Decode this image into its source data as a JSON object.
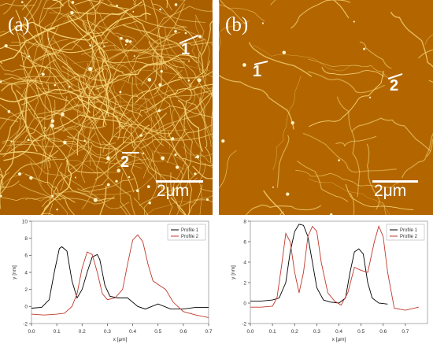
{
  "panels": {
    "a": {
      "label": "(a)",
      "markers": [
        "1",
        "2"
      ],
      "scale_bar": "2μm"
    },
    "b": {
      "label": "(b)",
      "markers": [
        "1",
        "2"
      ],
      "scale_bar": "2μm"
    }
  },
  "colors": {
    "afm_background": "#b86a00",
    "afm_fibers": "#f6d77a",
    "profile_1": "#000000",
    "profile_2": "#c0392b"
  },
  "chart_data": [
    {
      "type": "line",
      "xlabel": "x [μm]",
      "ylabel": "y [nm]",
      "xlim": [
        0,
        0.7
      ],
      "ylim": [
        -2,
        10
      ],
      "xticks": [
        0,
        0.1,
        0.2,
        0.3,
        0.4,
        0.5,
        0.6,
        0.7
      ],
      "xtick_labels": [
        "0.0",
        "0.1",
        "0.2",
        "0.3",
        "0.4",
        "0.5",
        "0.6",
        "0.7"
      ],
      "yticks": [
        -2,
        0,
        2,
        4,
        6,
        8,
        10
      ],
      "ytick_labels": [
        "-2",
        "0",
        "2",
        "4",
        "6",
        "8",
        "10"
      ],
      "legend_position": "top-right",
      "series": [
        {
          "name": "Profile 1",
          "color": "#000000",
          "x": [
            0,
            0.04,
            0.07,
            0.09,
            0.11,
            0.12,
            0.14,
            0.16,
            0.18,
            0.2,
            0.22,
            0.24,
            0.26,
            0.27,
            0.29,
            0.31,
            0.34,
            0.38,
            0.42,
            0.45,
            0.5,
            0.55,
            0.6,
            0.65,
            0.7
          ],
          "y": [
            -0.2,
            -0.1,
            0.8,
            4.0,
            6.8,
            7.0,
            6.5,
            3.0,
            1.0,
            2.0,
            4.0,
            5.8,
            6.1,
            5.5,
            2.5,
            1.2,
            1.0,
            1.0,
            0.0,
            -0.3,
            0.3,
            -0.3,
            -0.3,
            -0.1,
            -0.1
          ]
        },
        {
          "name": "Profile 2",
          "color": "#c0392b",
          "x": [
            0,
            0.05,
            0.1,
            0.13,
            0.16,
            0.18,
            0.2,
            0.22,
            0.24,
            0.26,
            0.28,
            0.3,
            0.33,
            0.36,
            0.38,
            0.4,
            0.42,
            0.44,
            0.46,
            0.48,
            0.5,
            0.53,
            0.56,
            0.6,
            0.65,
            0.7
          ],
          "y": [
            -0.9,
            -1.0,
            -0.9,
            -0.8,
            0.0,
            1.5,
            4.5,
            6.4,
            6.1,
            4.0,
            1.5,
            0.8,
            1.0,
            2.0,
            5.0,
            7.8,
            8.4,
            7.6,
            5.0,
            3.0,
            2.6,
            2.0,
            0.5,
            -0.6,
            -1.0,
            -1.3
          ]
        }
      ]
    },
    {
      "type": "line",
      "xlabel": "x [μm]",
      "ylabel": "y [nm]",
      "xlim": [
        0,
        0.8
      ],
      "ylim": [
        -2,
        8
      ],
      "xticks": [
        0,
        0.1,
        0.2,
        0.3,
        0.4,
        0.5,
        0.6,
        0.7
      ],
      "xtick_labels": [
        "0.0",
        "0.1",
        "0.2",
        "0.3",
        "0.4",
        "0.5",
        "0.6",
        "0.7"
      ],
      "yticks": [
        -2,
        0,
        2,
        4,
        6,
        8
      ],
      "ytick_labels": [
        "-2",
        "0",
        "2",
        "4",
        "6",
        "8"
      ],
      "legend_position": "top-right",
      "series": [
        {
          "name": "Profile 1",
          "color": "#000000",
          "x": [
            0,
            0.05,
            0.1,
            0.13,
            0.16,
            0.18,
            0.2,
            0.22,
            0.24,
            0.26,
            0.28,
            0.3,
            0.33,
            0.36,
            0.4,
            0.43,
            0.45,
            0.47,
            0.49,
            0.51,
            0.53,
            0.55,
            0.58,
            0.62
          ],
          "y": [
            0.2,
            0.2,
            0.3,
            0.5,
            2.0,
            5.0,
            7.0,
            7.7,
            7.6,
            6.5,
            4.0,
            1.5,
            0.3,
            0.1,
            0.0,
            0.5,
            3.0,
            5.0,
            5.3,
            4.8,
            2.0,
            0.5,
            0.0,
            -0.1
          ]
        },
        {
          "name": "Profile 2",
          "color": "#c0392b",
          "x": [
            0,
            0.05,
            0.1,
            0.12,
            0.14,
            0.16,
            0.18,
            0.2,
            0.22,
            0.24,
            0.26,
            0.28,
            0.3,
            0.32,
            0.35,
            0.38,
            0.41,
            0.44,
            0.47,
            0.5,
            0.53,
            0.56,
            0.58,
            0.6,
            0.62,
            0.65,
            0.7,
            0.76
          ],
          "y": [
            -0.4,
            -0.4,
            -0.3,
            0.5,
            3.5,
            6.8,
            6.0,
            3.0,
            1.0,
            3.0,
            6.5,
            7.5,
            7.0,
            4.0,
            1.0,
            0.2,
            -0.2,
            1.0,
            3.5,
            3.2,
            3.0,
            6.0,
            7.5,
            6.5,
            3.0,
            -0.5,
            -0.7,
            -0.4
          ]
        }
      ]
    }
  ]
}
